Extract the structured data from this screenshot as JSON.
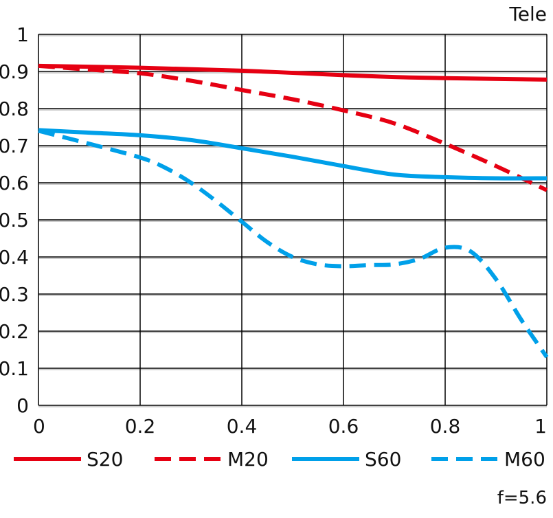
{
  "chart_data": {
    "type": "line",
    "title": "Tele",
    "footnote": "f=5.6",
    "xlabel": "",
    "ylabel": "",
    "xlim": [
      0,
      1
    ],
    "ylim": [
      0,
      1
    ],
    "grid": true,
    "x_ticks": [
      "0",
      "0.2",
      "0.4",
      "0.6",
      "0.8",
      "1"
    ],
    "x_tick_values": [
      0,
      0.2,
      0.4,
      0.6,
      0.8,
      1
    ],
    "y_ticks": [
      "0",
      "0.1",
      "0.2",
      "0.3",
      "0.4",
      "0.5",
      "0.6",
      "0.7",
      "0.8",
      "0.9",
      "1"
    ],
    "y_tick_values": [
      0,
      0.1,
      0.2,
      0.3,
      0.4,
      0.5,
      0.6,
      0.7,
      0.8,
      0.9,
      1
    ],
    "legend_placement": "bottom",
    "series": [
      {
        "name": "S20",
        "color": "#e60012",
        "dashed": false,
        "x": [
          0,
          0.2,
          0.4,
          0.6,
          0.7,
          0.8,
          1
        ],
        "y": [
          0.915,
          0.91,
          0.902,
          0.89,
          0.885,
          0.882,
          0.878
        ]
      },
      {
        "name": "M20",
        "color": "#e60012",
        "dashed": true,
        "x": [
          0,
          0.1,
          0.2,
          0.3,
          0.4,
          0.5,
          0.6,
          0.7,
          0.8,
          0.9,
          1
        ],
        "y": [
          0.915,
          0.905,
          0.895,
          0.875,
          0.85,
          0.825,
          0.795,
          0.76,
          0.705,
          0.645,
          0.58
        ]
      },
      {
        "name": "S60",
        "color": "#00a0e9",
        "dashed": false,
        "x": [
          0,
          0.1,
          0.2,
          0.3,
          0.4,
          0.5,
          0.6,
          0.7,
          0.8,
          0.9,
          1
        ],
        "y": [
          0.742,
          0.735,
          0.728,
          0.715,
          0.693,
          0.67,
          0.645,
          0.622,
          0.615,
          0.612,
          0.612
        ]
      },
      {
        "name": "M60",
        "color": "#00a0e9",
        "dashed": true,
        "x": [
          0,
          0.1,
          0.2,
          0.25,
          0.3,
          0.35,
          0.4,
          0.45,
          0.5,
          0.55,
          0.6,
          0.65,
          0.7,
          0.75,
          0.8,
          0.85,
          0.9,
          0.95,
          1
        ],
        "y": [
          0.74,
          0.705,
          0.668,
          0.64,
          0.6,
          0.55,
          0.495,
          0.44,
          0.4,
          0.38,
          0.375,
          0.378,
          0.38,
          0.395,
          0.425,
          0.415,
          0.34,
          0.23,
          0.13
        ]
      }
    ]
  }
}
